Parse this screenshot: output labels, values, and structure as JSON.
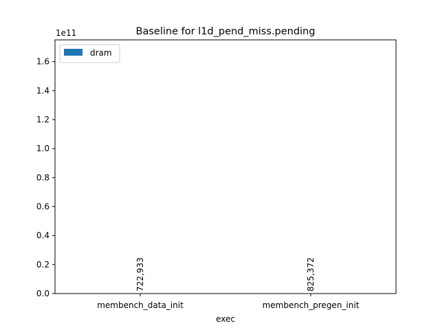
{
  "chart_data": {
    "type": "bar",
    "title": "Baseline for l1d_pend_miss.pending",
    "xlabel": "exec",
    "ylabel": "",
    "y_scale_label": "1e11",
    "y_multiplier": 100000000000,
    "ylim": [
      0,
      1.75
    ],
    "yticks": [
      0.0,
      0.2,
      0.4,
      0.6,
      0.8,
      1.0,
      1.2,
      1.4,
      1.6
    ],
    "ytick_labels": [
      "0.0",
      "0.2",
      "0.4",
      "0.6",
      "0.8",
      "1.0",
      "1.2",
      "1.4",
      "1.6"
    ],
    "categories": [
      "membench_data_init",
      "membench_pregen_init"
    ],
    "series": [
      {
        "name": "dram",
        "color": "#1f77b4",
        "values": [
          722933,
          825372
        ],
        "data_labels": [
          "722,933",
          "825,372"
        ]
      }
    ],
    "legend_position": "top-left",
    "grid": false
  }
}
